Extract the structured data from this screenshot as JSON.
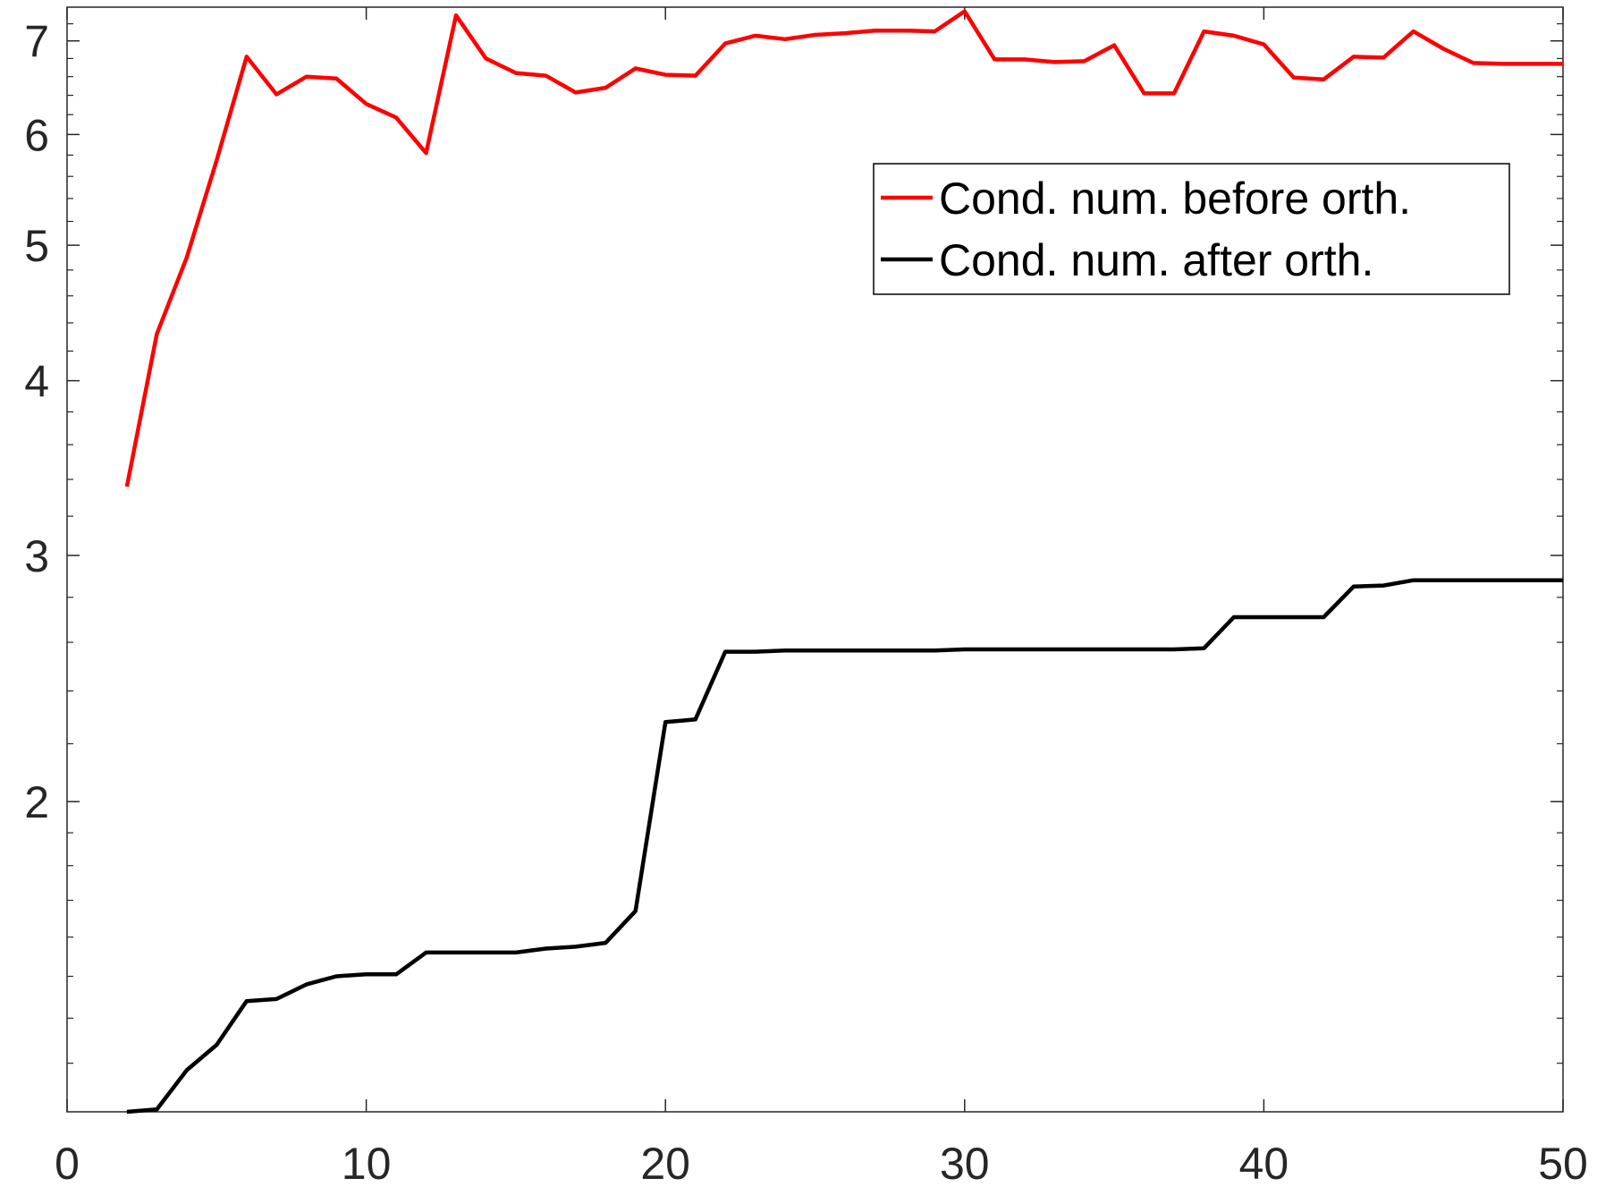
{
  "chart_data": {
    "type": "line",
    "title": "",
    "xlabel": "",
    "ylabel": "",
    "xlim": [
      0,
      50
    ],
    "ylim": [
      1.2,
      7.4
    ],
    "yscale": "log",
    "grid": false,
    "legend_position": "top-right",
    "x_ticks": [
      0,
      10,
      20,
      30,
      40,
      50
    ],
    "x_tick_labels": [
      "0",
      "10",
      "20",
      "30",
      "40",
      "50"
    ],
    "y_ticks": [
      2,
      3,
      4,
      5,
      6,
      7
    ],
    "y_tick_labels": [
      "2",
      "3",
      "4",
      "5",
      "6",
      "7"
    ],
    "x": [
      2,
      3,
      4,
      5,
      6,
      7,
      8,
      9,
      10,
      11,
      12,
      13,
      14,
      15,
      16,
      17,
      18,
      19,
      20,
      21,
      22,
      23,
      24,
      25,
      26,
      27,
      28,
      29,
      30,
      31,
      32,
      33,
      34,
      35,
      36,
      37,
      38,
      39,
      40,
      41,
      42,
      43,
      44,
      45,
      46,
      47,
      48,
      49,
      50
    ],
    "series": [
      {
        "name": "Cond. num. before orth.",
        "color": "#ff0000",
        "values": [
          3.36,
          4.32,
          4.9,
          5.75,
          6.82,
          6.41,
          6.6,
          6.58,
          6.31,
          6.17,
          5.82,
          7.3,
          6.8,
          6.64,
          6.61,
          6.43,
          6.48,
          6.69,
          6.62,
          6.61,
          6.97,
          7.06,
          7.02,
          7.07,
          7.09,
          7.12,
          7.12,
          7.11,
          7.35,
          6.79,
          6.79,
          6.76,
          6.77,
          6.95,
          6.42,
          6.42,
          7.11,
          7.06,
          6.96,
          6.59,
          6.57,
          6.82,
          6.81,
          7.11,
          6.91,
          6.75,
          6.74,
          6.74,
          6.74
        ]
      },
      {
        "name": "Cond. num. after orth.",
        "color": "#000000",
        "values": [
          1.2,
          1.205,
          1.285,
          1.34,
          1.44,
          1.445,
          1.48,
          1.5,
          1.505,
          1.505,
          1.56,
          1.56,
          1.56,
          1.56,
          1.57,
          1.575,
          1.585,
          1.67,
          2.28,
          2.29,
          2.56,
          2.56,
          2.565,
          2.565,
          2.565,
          2.565,
          2.565,
          2.565,
          2.57,
          2.57,
          2.57,
          2.57,
          2.57,
          2.57,
          2.57,
          2.57,
          2.575,
          2.71,
          2.71,
          2.71,
          2.71,
          2.85,
          2.855,
          2.88,
          2.88,
          2.88,
          2.88,
          2.88,
          2.88
        ]
      }
    ]
  }
}
